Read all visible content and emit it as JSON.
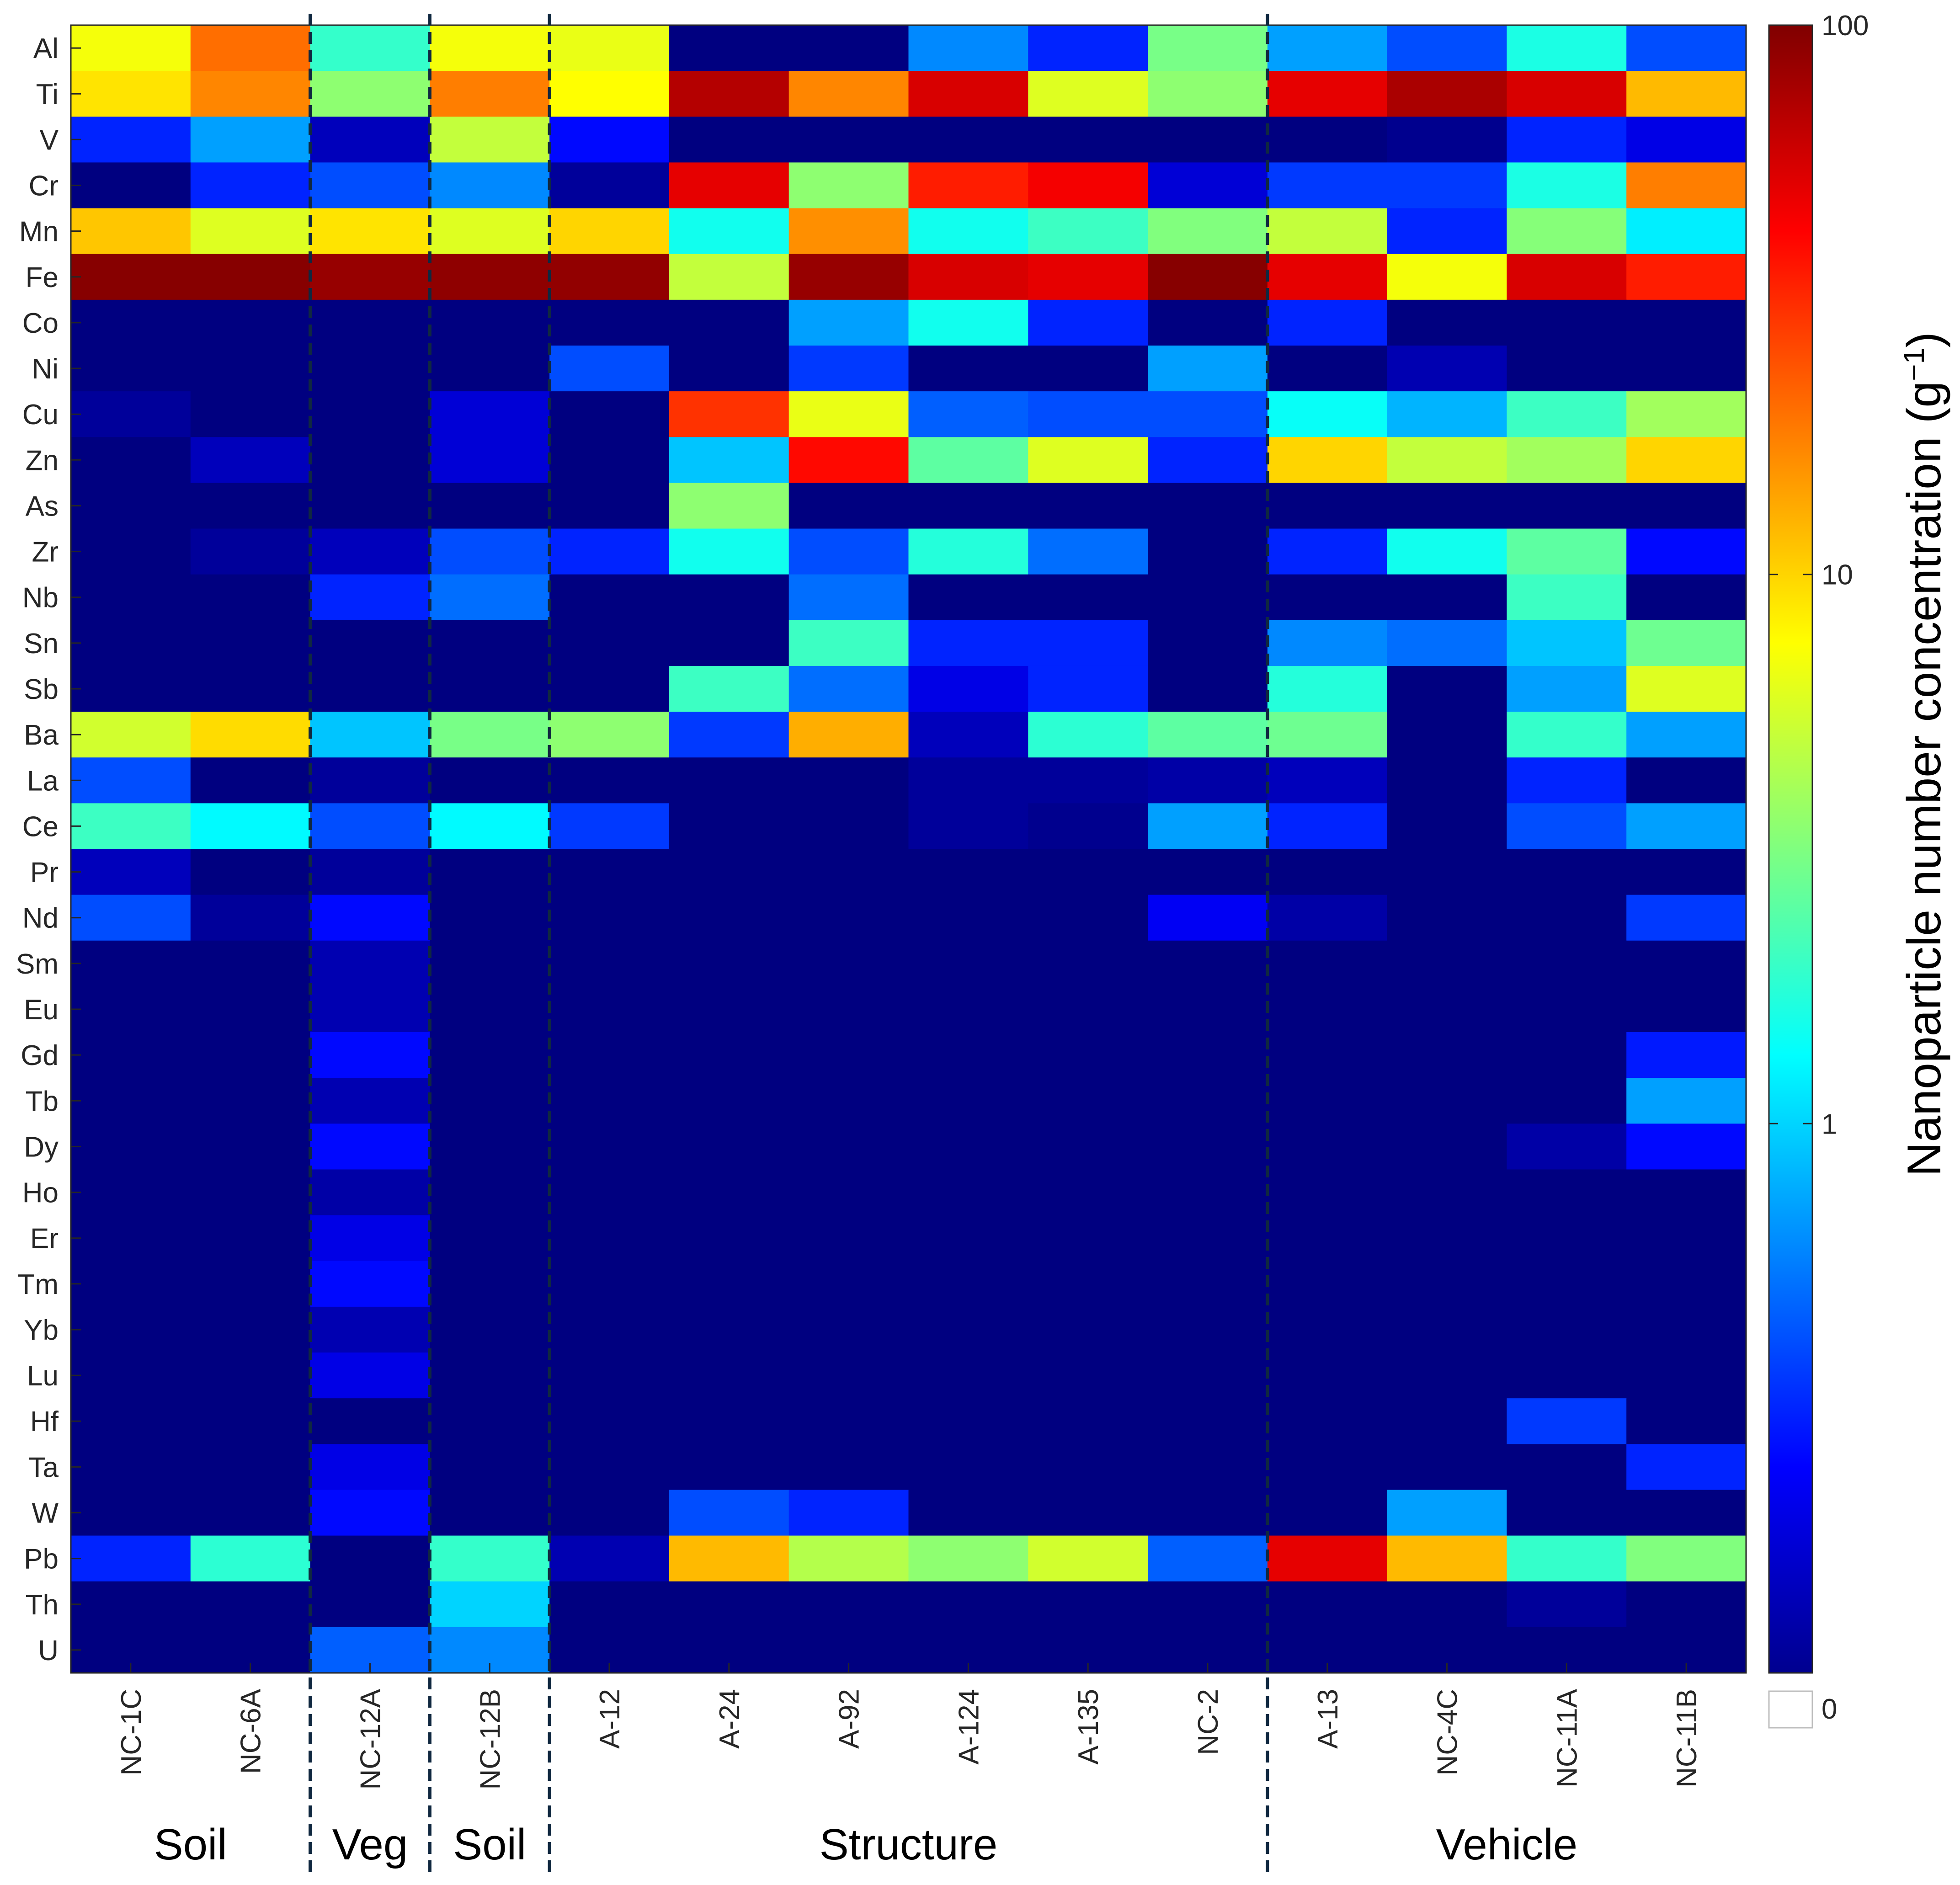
{
  "chart_data": {
    "type": "heatmap",
    "title": "",
    "rows": [
      "Al",
      "Ti",
      "V",
      "Cr",
      "Mn",
      "Fe",
      "Co",
      "Ni",
      "Cu",
      "Zn",
      "As",
      "Zr",
      "Nb",
      "Sn",
      "Sb",
      "Ba",
      "La",
      "Ce",
      "Pr",
      "Nd",
      "Sm",
      "Eu",
      "Gd",
      "Tb",
      "Dy",
      "Ho",
      "Er",
      "Tm",
      "Yb",
      "Lu",
      "Hf",
      "Ta",
      "W",
      "Pb",
      "Th",
      "U"
    ],
    "columns": [
      "NC-1C",
      "NC-6A",
      "NC-12A",
      "NC-12B",
      "A-12",
      "A-24",
      "A-92",
      "A-124",
      "A-135",
      "NC-2",
      "A-13",
      "NC-4C",
      "NC-11A",
      "NC-11B"
    ],
    "groups": [
      {
        "label": "Soil",
        "start": 0,
        "end": 1
      },
      {
        "label": "Veg",
        "start": 2,
        "end": 2
      },
      {
        "label": "Soil",
        "start": 3,
        "end": 3
      },
      {
        "label": "Structure",
        "start": 4,
        "end": 9
      },
      {
        "label": "Vehicle",
        "start": 10,
        "end": 13
      }
    ],
    "group_dividers_after_column": [
      1,
      2,
      3,
      9
    ],
    "colorbar": {
      "label_main": "Nanoparticle number concentration (g",
      "label_sup": "−1",
      "label_close": ")",
      "scale": "log",
      "range": [
        0.1,
        100
      ],
      "ticks": [
        "100",
        "10",
        "1"
      ],
      "zero_label": "0",
      "zero_color": "#ffffff",
      "colormap": "jet"
    },
    "values": [
      [
        7,
        20,
        1.9,
        7,
        6.5,
        0.1,
        0.1,
        0.6,
        0.3,
        3,
        0.7,
        0.4,
        1.6,
        0.4
      ],
      [
        9,
        17,
        3.5,
        18,
        7.5,
        70,
        17,
        55,
        6,
        3.5,
        50,
        75,
        55,
        12
      ],
      [
        0.3,
        0.7,
        0.15,
        5,
        0.25,
        0.1,
        0.1,
        0.1,
        0.1,
        0.1,
        0.1,
        0.11,
        0.3,
        0.2
      ],
      [
        0.1,
        0.3,
        0.4,
        0.6,
        0.12,
        50,
        3.5,
        35,
        45,
        0.18,
        0.35,
        0.35,
        1.6,
        18
      ],
      [
        11,
        6,
        9,
        6,
        10,
        1.5,
        16,
        1.5,
        2,
        3.2,
        5,
        0.3,
        3.3,
        1.2
      ],
      [
        95,
        95,
        85,
        90,
        88,
        5,
        85,
        55,
        50,
        95,
        50,
        7,
        55,
        35
      ],
      [
        0.1,
        0.1,
        0.1,
        0.1,
        0.1,
        0.1,
        0.7,
        1.5,
        0.3,
        0.1,
        0.3,
        0.1,
        0.1,
        0.1
      ],
      [
        0.1,
        0.1,
        0.1,
        0.1,
        0.4,
        0.1,
        0.35,
        0.1,
        0.1,
        0.7,
        0.1,
        0.14,
        0.1,
        0.1
      ],
      [
        0.12,
        0.1,
        0.1,
        0.18,
        0.1,
        30,
        6.5,
        0.45,
        0.4,
        0.4,
        1.4,
        0.8,
        2,
        4
      ],
      [
        0.1,
        0.15,
        0.1,
        0.18,
        0.1,
        0.9,
        40,
        2.5,
        6,
        0.3,
        10,
        5,
        4,
        10
      ],
      [
        0.1,
        0.1,
        0.1,
        0.1,
        0.1,
        3.5,
        0.1,
        0.1,
        0.1,
        0.1,
        0.1,
        0.1,
        0.1,
        0.1
      ],
      [
        0.1,
        0.12,
        0.15,
        0.4,
        0.3,
        1.5,
        0.4,
        1.7,
        0.5,
        0.1,
        0.3,
        1.5,
        2.5,
        0.25
      ],
      [
        0.1,
        0.1,
        0.3,
        0.5,
        0.1,
        0.1,
        0.5,
        0.1,
        0.1,
        0.1,
        0.1,
        0.1,
        2,
        0.1
      ],
      [
        0.1,
        0.1,
        0.1,
        0.1,
        0.1,
        0.1,
        2,
        0.3,
        0.3,
        0.1,
        0.6,
        0.5,
        0.9,
        2.8
      ],
      [
        0.1,
        0.1,
        0.1,
        0.1,
        0.1,
        2,
        0.5,
        0.2,
        0.3,
        0.1,
        1.7,
        0.1,
        0.7,
        6
      ],
      [
        5.5,
        9.5,
        0.9,
        3,
        3.5,
        0.35,
        13,
        0.15,
        1.8,
        2.5,
        2.8,
        0.1,
        1.9,
        0.7
      ],
      [
        0.4,
        0.1,
        0.12,
        0.1,
        0.1,
        0.1,
        0.1,
        0.12,
        0.12,
        0.13,
        0.15,
        0.1,
        0.3,
        0.1
      ],
      [
        2,
        1.3,
        0.4,
        1.3,
        0.35,
        0.1,
        0.1,
        0.12,
        0.11,
        0.7,
        0.3,
        0.1,
        0.4,
        0.7
      ],
      [
        0.15,
        0.1,
        0.12,
        0.1,
        0.1,
        0.1,
        0.1,
        0.1,
        0.1,
        0.1,
        0.1,
        0.1,
        0.1,
        0.1
      ],
      [
        0.4,
        0.12,
        0.25,
        0.1,
        0.1,
        0.1,
        0.1,
        0.1,
        0.1,
        0.22,
        0.13,
        0.1,
        0.1,
        0.35
      ],
      [
        0.1,
        0.1,
        0.14,
        0.1,
        0.1,
        0.1,
        0.1,
        0.1,
        0.1,
        0.1,
        0.1,
        0.1,
        0.1,
        0.1
      ],
      [
        0.1,
        0.1,
        0.14,
        0.1,
        0.1,
        0.1,
        0.1,
        0.1,
        0.1,
        0.1,
        0.1,
        0.1,
        0.1,
        0.1
      ],
      [
        0.1,
        0.1,
        0.25,
        0.1,
        0.1,
        0.1,
        0.1,
        0.1,
        0.1,
        0.1,
        0.1,
        0.1,
        0.1,
        0.28
      ],
      [
        0.1,
        0.1,
        0.14,
        0.1,
        0.1,
        0.1,
        0.1,
        0.1,
        0.1,
        0.1,
        0.1,
        0.1,
        0.1,
        0.7
      ],
      [
        0.1,
        0.1,
        0.25,
        0.1,
        0.1,
        0.1,
        0.1,
        0.1,
        0.1,
        0.1,
        0.1,
        0.1,
        0.13,
        0.25
      ],
      [
        0.1,
        0.1,
        0.13,
        0.1,
        0.1,
        0.1,
        0.1,
        0.1,
        0.1,
        0.1,
        0.1,
        0.1,
        0.1,
        0.1
      ],
      [
        0.1,
        0.1,
        0.2,
        0.1,
        0.1,
        0.1,
        0.1,
        0.1,
        0.1,
        0.1,
        0.1,
        0.1,
        0.1,
        0.1
      ],
      [
        0.1,
        0.1,
        0.25,
        0.1,
        0.1,
        0.1,
        0.1,
        0.1,
        0.1,
        0.1,
        0.1,
        0.1,
        0.1,
        0.1
      ],
      [
        0.1,
        0.1,
        0.14,
        0.1,
        0.1,
        0.1,
        0.1,
        0.1,
        0.1,
        0.1,
        0.1,
        0.1,
        0.1,
        0.1
      ],
      [
        0.1,
        0.1,
        0.2,
        0.1,
        0.1,
        0.1,
        0.1,
        0.1,
        0.1,
        0.1,
        0.1,
        0.1,
        0.1,
        0.1
      ],
      [
        0.1,
        0.1,
        0.1,
        0.1,
        0.1,
        0.1,
        0.1,
        0.1,
        0.1,
        0.1,
        0.1,
        0.1,
        0.35,
        0.1
      ],
      [
        0.1,
        0.1,
        0.2,
        0.1,
        0.1,
        0.1,
        0.1,
        0.1,
        0.1,
        0.1,
        0.1,
        0.1,
        0.1,
        0.3
      ],
      [
        0.1,
        0.1,
        0.25,
        0.1,
        0.1,
        0.4,
        0.3,
        0.1,
        0.1,
        0.1,
        0.1,
        0.7,
        0.1,
        0.1
      ],
      [
        0.3,
        1.8,
        0.1,
        1.9,
        0.14,
        12,
        4.5,
        3.5,
        5.5,
        0.45,
        50,
        12,
        1.9,
        3.2
      ],
      [
        0.1,
        0.1,
        0.1,
        1,
        0.1,
        0.1,
        0.1,
        0.1,
        0.1,
        0.1,
        0.1,
        0.1,
        0.12,
        0.1
      ],
      [
        0.1,
        0.1,
        0.45,
        0.6,
        0.1,
        0.1,
        0.1,
        0.1,
        0.1,
        0.1,
        0.1,
        0.1,
        0.1,
        0.1
      ]
    ]
  }
}
